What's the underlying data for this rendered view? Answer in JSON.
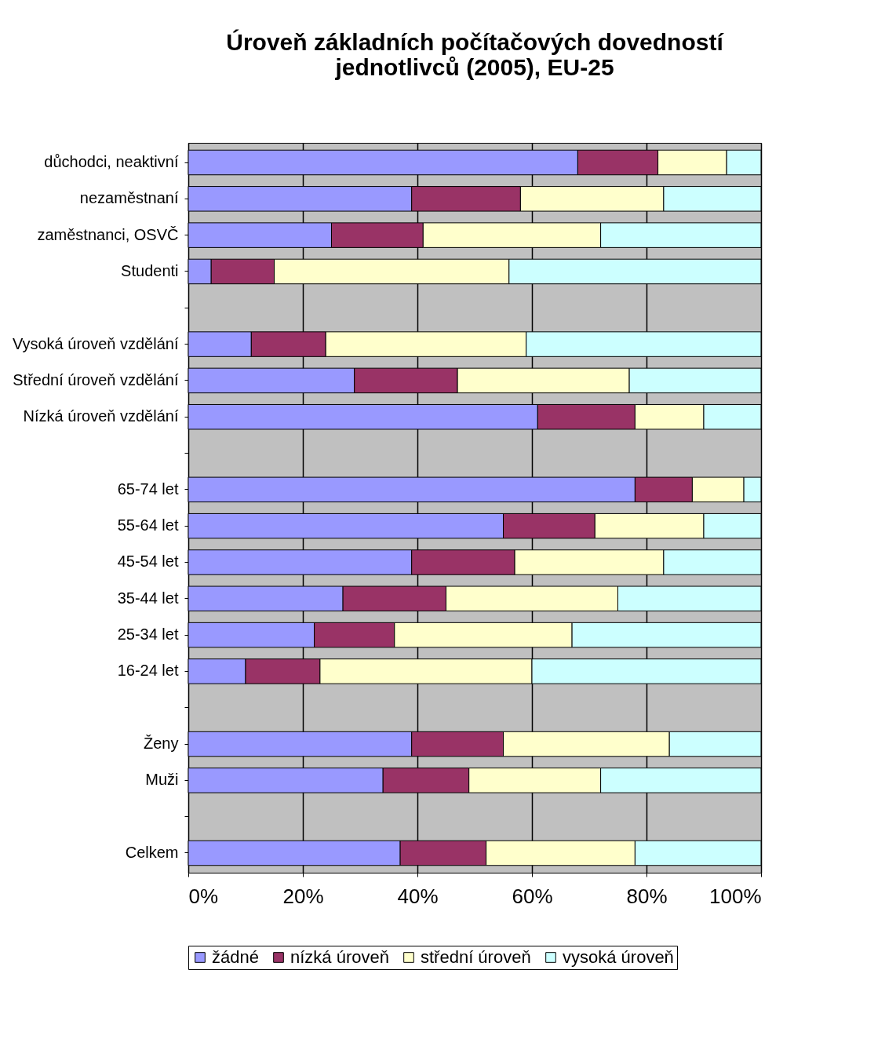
{
  "chart_data": {
    "type": "bar",
    "orientation": "horizontal",
    "stacked": true,
    "title": "Úroveň základních počítačových dovedností jednotlivců (2005), EU-25",
    "categories": [
      "důchodci, neaktivní",
      "nezaměstnaní",
      "zaměstnanci, OSVČ",
      "Studenti",
      null,
      "Vysoká úroveň vzdělání",
      "Střední úroveň vzdělání",
      "Nízká úroveň vzdělání",
      null,
      "65-74 let",
      "55-64 let",
      "45-54 let",
      "35-44 let",
      "25-34 let",
      "16-24 let",
      null,
      "Ženy",
      "Muži",
      null,
      "Celkem"
    ],
    "series": [
      {
        "name": "žádné",
        "color": "#9999ff",
        "values": [
          68,
          39,
          25,
          4,
          null,
          11,
          29,
          61,
          null,
          78,
          55,
          39,
          27,
          22,
          10,
          null,
          39,
          34,
          null,
          37
        ]
      },
      {
        "name": "nízká úroveň",
        "color": "#993366",
        "values": [
          14,
          19,
          16,
          11,
          null,
          13,
          18,
          17,
          null,
          10,
          16,
          18,
          18,
          14,
          13,
          null,
          16,
          15,
          null,
          15
        ]
      },
      {
        "name": "střední úroveň",
        "color": "#ffffcc",
        "values": [
          12,
          25,
          31,
          41,
          null,
          35,
          30,
          12,
          null,
          9,
          19,
          26,
          30,
          31,
          37,
          null,
          29,
          23,
          null,
          26
        ]
      },
      {
        "name": "vysoká úroveň",
        "color": "#ccffff",
        "values": [
          6,
          17,
          28,
          44,
          null,
          41,
          23,
          10,
          null,
          3,
          10,
          17,
          25,
          33,
          40,
          null,
          16,
          28,
          null,
          22
        ]
      }
    ],
    "xlim": [
      0,
      100
    ],
    "xticks": [
      {
        "value": 0,
        "label": "0%"
      },
      {
        "value": 20,
        "label": "20%"
      },
      {
        "value": 40,
        "label": "40%"
      },
      {
        "value": 60,
        "label": "60%"
      },
      {
        "value": 80,
        "label": "80%"
      },
      {
        "value": 100,
        "label": "100%"
      }
    ],
    "grid": "x",
    "legend": "bottom"
  }
}
